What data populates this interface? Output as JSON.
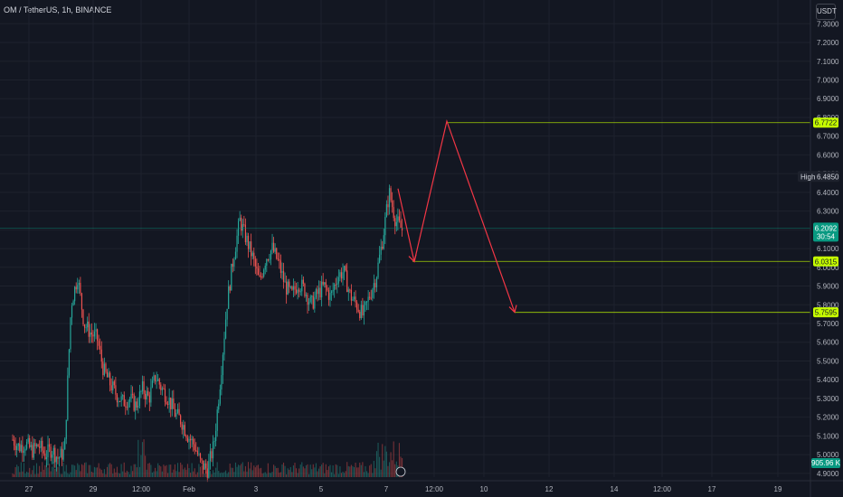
{
  "header": {
    "symbol_title": "OM / TetherUS, 1h, BINANCE"
  },
  "currency_button": "USDT",
  "colors": {
    "background": "#131722",
    "up": "#26a69a",
    "down": "#ef5350",
    "forecast_line": "#f23645",
    "target_line": "#c6ff00",
    "current_price_tag": "#089981"
  },
  "chart_data": {
    "type": "candlestick",
    "y_axis": {
      "ticks": [
        "4.9000",
        "5.0000",
        "5.1000",
        "5.2000",
        "5.3000",
        "5.4000",
        "5.5000",
        "5.6000",
        "5.7000",
        "5.8000",
        "5.9000",
        "6.0000",
        "6.1000",
        "6.2000",
        "6.3000",
        "6.4000",
        "6.5000",
        "6.6000",
        "6.7000",
        "6.8000",
        "6.9000",
        "7.0000",
        "7.1000",
        "7.2000",
        "7.3000"
      ],
      "range": [
        4.88,
        7.34
      ]
    },
    "x_axis": {
      "ticks": [
        "27",
        "29",
        "12:00",
        "Feb",
        "3",
        "5",
        "7",
        "12:00",
        "10",
        "12",
        "14",
        "12:00",
        "17",
        "19"
      ]
    },
    "price_path": [
      [
        0,
        5.08
      ],
      [
        3,
        5.04
      ],
      [
        6,
        5.06
      ],
      [
        9,
        5.02
      ],
      [
        12,
        5.05
      ],
      [
        15,
        5.0
      ],
      [
        18,
        5.03
      ],
      [
        21,
        4.98
      ],
      [
        24,
        5.02
      ],
      [
        27,
        5.8
      ],
      [
        30,
        5.95
      ],
      [
        33,
        5.7
      ],
      [
        36,
        5.65
      ],
      [
        39,
        5.62
      ],
      [
        42,
        5.45
      ],
      [
        45,
        5.38
      ],
      [
        48,
        5.32
      ],
      [
        51,
        5.28
      ],
      [
        54,
        5.3
      ],
      [
        57,
        5.26
      ],
      [
        60,
        5.35
      ],
      [
        63,
        5.3
      ],
      [
        66,
        5.42
      ],
      [
        69,
        5.35
      ],
      [
        72,
        5.3
      ],
      [
        75,
        5.22
      ],
      [
        78,
        5.18
      ],
      [
        81,
        5.1
      ],
      [
        84,
        5.05
      ],
      [
        87,
        4.95
      ],
      [
        90,
        4.92
      ],
      [
        93,
        5.05
      ],
      [
        96,
        5.4
      ],
      [
        99,
        5.8
      ],
      [
        102,
        6.05
      ],
      [
        105,
        6.25
      ],
      [
        108,
        6.15
      ],
      [
        111,
        6.05
      ],
      [
        114,
        5.92
      ],
      [
        117,
        6.05
      ],
      [
        120,
        6.1
      ],
      [
        123,
        6.02
      ],
      [
        126,
        5.9
      ],
      [
        129,
        5.85
      ],
      [
        132,
        5.92
      ],
      [
        135,
        5.88
      ],
      [
        138,
        5.8
      ],
      [
        141,
        5.86
      ],
      [
        144,
        5.9
      ],
      [
        147,
        5.84
      ],
      [
        150,
        5.95
      ],
      [
        153,
        5.98
      ],
      [
        156,
        5.85
      ],
      [
        159,
        5.8
      ],
      [
        162,
        5.74
      ],
      [
        165,
        5.85
      ],
      [
        168,
        5.95
      ],
      [
        171,
        6.15
      ],
      [
        174,
        6.4
      ],
      [
        177,
        6.25
      ],
      [
        180,
        6.2
      ]
    ],
    "last_price": 6.2092,
    "countdown": "30:54",
    "high": {
      "label": "High",
      "value": "6.4850"
    },
    "targets": [
      {
        "value": 6.7722,
        "label": "6.7722"
      },
      {
        "value": 6.0315,
        "label": "6.0315"
      },
      {
        "value": 5.7595,
        "label": "5.7595"
      }
    ],
    "forecast_path": [
      [
        180,
        6.42
      ],
      [
        186,
        6.03
      ],
      [
        198,
        6.78
      ],
      [
        222,
        5.76
      ]
    ],
    "volume_label": "905.96 K",
    "current_price_label": "6.2092"
  }
}
